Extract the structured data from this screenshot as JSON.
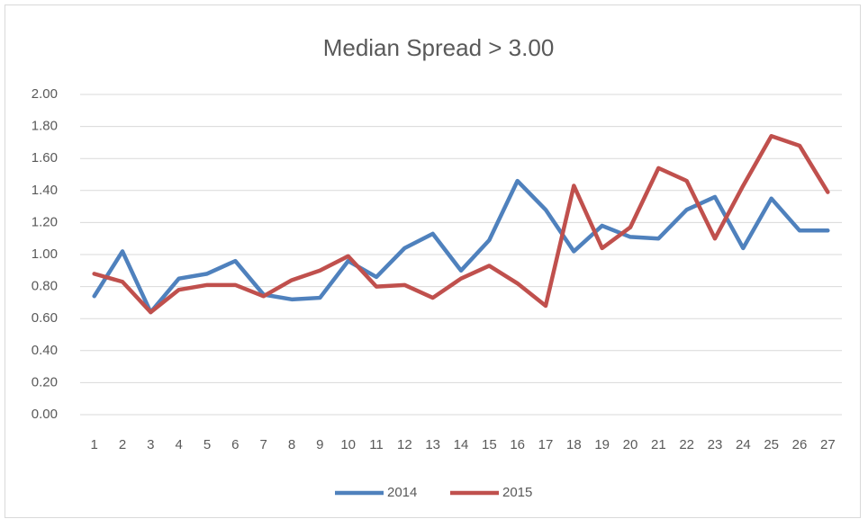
{
  "chart_data": {
    "type": "line",
    "title": "Median Spread > 3.00",
    "categories": [
      "1",
      "2",
      "3",
      "4",
      "5",
      "6",
      "7",
      "8",
      "9",
      "10",
      "11",
      "12",
      "13",
      "14",
      "15",
      "16",
      "17",
      "18",
      "19",
      "20",
      "21",
      "22",
      "23",
      "24",
      "25",
      "26",
      "27"
    ],
    "series": [
      {
        "name": "2014",
        "color": "#4f81bd",
        "values": [
          0.74,
          1.02,
          0.64,
          0.85,
          0.88,
          0.96,
          0.75,
          0.72,
          0.73,
          0.96,
          0.86,
          1.04,
          1.13,
          0.9,
          1.09,
          1.46,
          1.28,
          1.02,
          1.18,
          1.11,
          1.1,
          1.28,
          1.36,
          1.04,
          1.35,
          1.15,
          1.15
        ]
      },
      {
        "name": "2015",
        "color": "#c0504d",
        "values": [
          0.88,
          0.83,
          0.64,
          0.78,
          0.81,
          0.81,
          0.74,
          0.84,
          0.9,
          0.99,
          0.8,
          0.81,
          0.73,
          0.85,
          0.93,
          0.82,
          0.68,
          1.43,
          1.04,
          1.17,
          1.54,
          1.46,
          1.1,
          1.43,
          1.74,
          1.68,
          1.39
        ]
      }
    ],
    "ylim": [
      0,
      2
    ],
    "yticks": [
      {
        "value": 0,
        "label": "0.00"
      },
      {
        "value": 0.2,
        "label": "0.20"
      },
      {
        "value": 0.4,
        "label": "0.40"
      },
      {
        "value": 0.6,
        "label": "0.60"
      },
      {
        "value": 0.8,
        "label": "0.80"
      },
      {
        "value": 1,
        "label": "1.00"
      },
      {
        "value": 1.2,
        "label": "1.20"
      },
      {
        "value": 1.4,
        "label": "1.40"
      },
      {
        "value": 1.6,
        "label": "1.60"
      },
      {
        "value": 1.8,
        "label": "1.80"
      },
      {
        "value": 2,
        "label": "2.00"
      }
    ],
    "grid": true,
    "legend": "bottom"
  }
}
